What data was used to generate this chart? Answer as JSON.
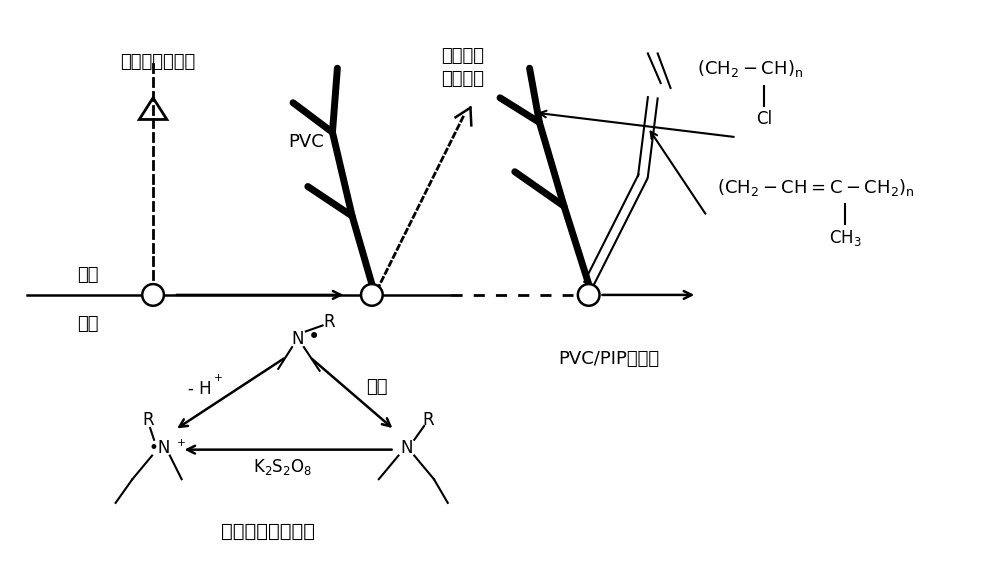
{
  "bg_color": "#ffffff",
  "figsize": [
    10.0,
    5.78
  ],
  "dpi": 100,
  "labels": {
    "vinyl_chloride": "氯乙烯一次聚合",
    "isoprene_line1": "异戊二烯",
    "isoprene_line2": "二次聚合",
    "oil_phase": "油相",
    "water_phase": "水相",
    "PVC": "PVC",
    "pvc_pip": "PVC/PIP共聚物",
    "radical_reaction": "氧化还原引发反应",
    "initiate": "引发",
    "minus_h": "- H",
    "k2s2o8": "K$_2$S$_2$O$_8$",
    "N": "N"
  }
}
